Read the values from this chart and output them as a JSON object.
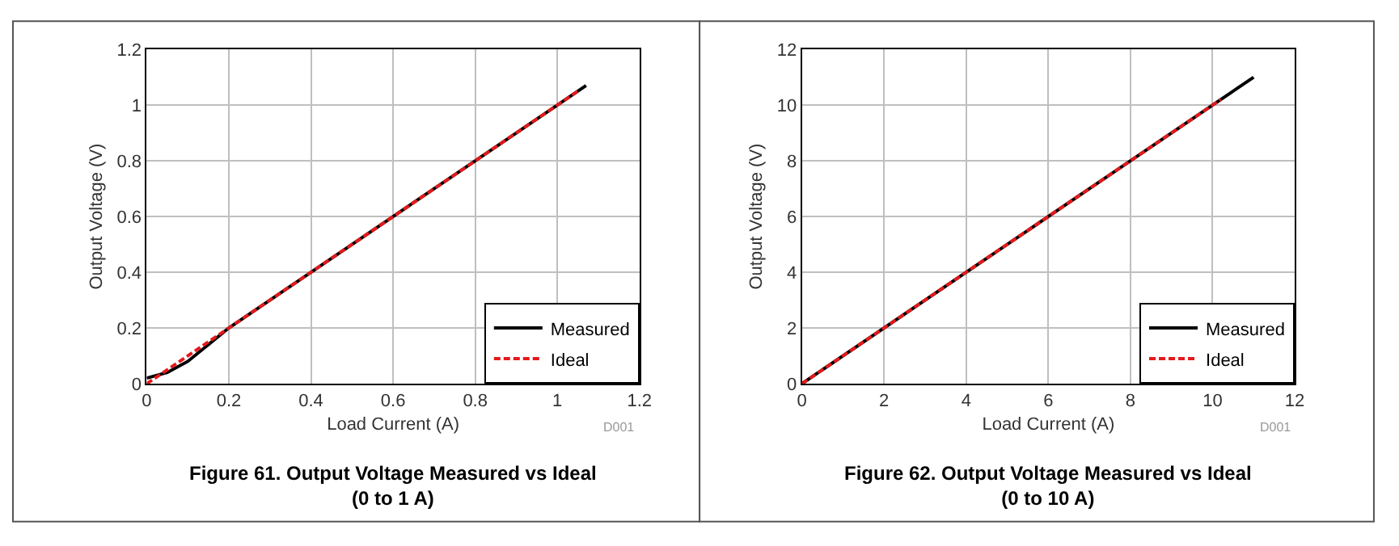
{
  "chart_data": [
    {
      "type": "line",
      "title": "Figure 61. Output Voltage Measured vs Ideal\n(0 to 1 A)",
      "xlabel": "Load Current (A)",
      "ylabel": "Output Voltage (V)",
      "annotations": [
        "D001"
      ],
      "series": [
        {
          "name": "Measured",
          "color": "#000000",
          "x": [
            0,
            0.05,
            0.1,
            0.2,
            0.4,
            0.6,
            0.8,
            1.0,
            1.07
          ],
          "values": [
            0.02,
            0.04,
            0.08,
            0.2,
            0.4,
            0.6,
            0.8,
            1.0,
            1.07
          ],
          "line_style": "solid"
        },
        {
          "name": "Ideal",
          "color": "#e31a1c",
          "x": [
            0,
            1.05
          ],
          "values": [
            0,
            1.05
          ],
          "line_style": "dashed"
        }
      ],
      "xlim": [
        0,
        1.2
      ],
      "ylim": [
        0,
        1.2
      ],
      "xticks": [
        0,
        0.2,
        0.4,
        0.6,
        0.8,
        1,
        1.2
      ],
      "yticks": [
        0,
        0.2,
        0.4,
        0.6,
        0.8,
        1,
        1.2
      ],
      "grid": true,
      "legend": "bottom right",
      "marker": "none"
    },
    {
      "type": "line",
      "title": "Figure 62. Output Voltage Measured vs Ideal\n(0 to 10 A)",
      "xlabel": "Load Current (A)",
      "ylabel": "Output Voltage (V)",
      "annotations": [
        "D001"
      ],
      "series": [
        {
          "name": "Measured",
          "color": "#000000",
          "x": [
            0,
            11
          ],
          "values": [
            0,
            11
          ],
          "line_style": "solid"
        },
        {
          "name": "Ideal",
          "color": "#e31a1c",
          "x": [
            0,
            10.2
          ],
          "values": [
            0,
            10.2
          ],
          "line_style": "dashed"
        }
      ],
      "xlim": [
        0,
        12
      ],
      "ylim": [
        0,
        12
      ],
      "xticks": [
        0,
        2,
        4,
        6,
        8,
        10,
        12
      ],
      "yticks": [
        0,
        2,
        4,
        6,
        8,
        10,
        12
      ],
      "grid": true,
      "legend": "bottom right",
      "marker": "none"
    }
  ]
}
